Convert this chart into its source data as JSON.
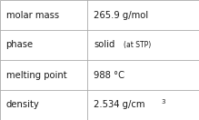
{
  "rows": [
    {
      "label": "molar mass",
      "value": "265.9 g/mol",
      "value_suffix": null,
      "value_sup": null
    },
    {
      "label": "phase",
      "value": "solid",
      "value_suffix": " (at STP)",
      "value_sup": null
    },
    {
      "label": "melting point",
      "value": "988 °C",
      "value_suffix": null,
      "value_sup": null
    },
    {
      "label": "density",
      "value": "2.534 g/cm",
      "value_suffix": null,
      "value_sup": "3"
    }
  ],
  "col_split": 0.44,
  "bg_color": "#ffffff",
  "border_color": "#aaaaaa",
  "text_color": "#1a1a1a",
  "label_fontsize": 7.2,
  "value_fontsize": 7.2,
  "suffix_fontsize": 5.5,
  "sup_fontsize": 5.0,
  "font_family": "DejaVu Sans"
}
